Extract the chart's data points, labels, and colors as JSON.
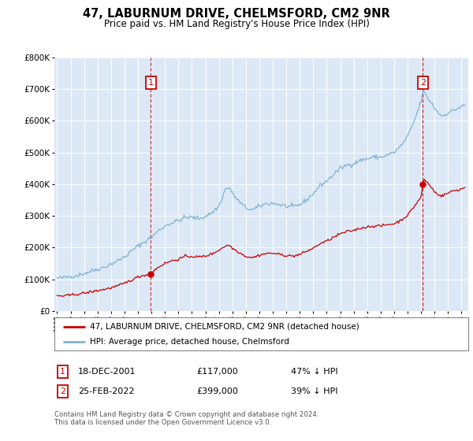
{
  "title": "47, LABURNUM DRIVE, CHELMSFORD, CM2 9NR",
  "subtitle": "Price paid vs. HM Land Registry's House Price Index (HPI)",
  "legend_line1": "47, LABURNUM DRIVE, CHELMSFORD, CM2 9NR (detached house)",
  "legend_line2": "HPI: Average price, detached house, Chelmsford",
  "annotation1_label": "1",
  "annotation1_date": "18-DEC-2001",
  "annotation1_price": "£117,000",
  "annotation1_hpi": "47% ↓ HPI",
  "annotation2_label": "2",
  "annotation2_date": "25-FEB-2022",
  "annotation2_price": "£399,000",
  "annotation2_hpi": "39% ↓ HPI",
  "footer": "Contains HM Land Registry data © Crown copyright and database right 2024.\nThis data is licensed under the Open Government Licence v3.0.",
  "red_line_color": "#cc0000",
  "blue_line_color": "#7fb3d3",
  "plot_bg_color": "#dce8f5",
  "grid_color": "#ffffff",
  "annotation_box_color": "#cc0000",
  "ylim": [
    0,
    800000
  ],
  "yticks": [
    0,
    100000,
    200000,
    300000,
    400000,
    500000,
    600000,
    700000,
    800000
  ],
  "ytick_labels": [
    "£0",
    "£100K",
    "£200K",
    "£300K",
    "£400K",
    "£500K",
    "£600K",
    "£700K",
    "£800K"
  ],
  "sale1_year": 2001.96,
  "sale1_value": 117000,
  "sale2_year": 2022.12,
  "sale2_value": 399000,
  "xmin": 1994.8,
  "xmax": 2025.5
}
